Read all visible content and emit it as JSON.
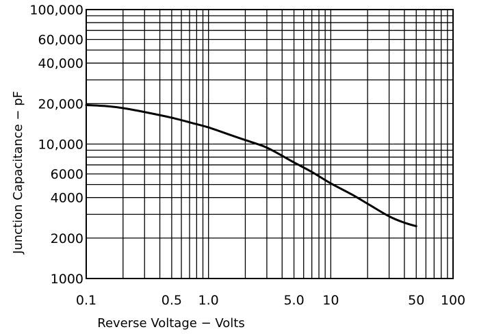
{
  "chart_data": {
    "type": "line",
    "title": "",
    "xlabel": "Reverse Voltage − Volts",
    "ylabel": "Junction Capacitance − pF",
    "x_scale": "log",
    "y_scale": "log",
    "xlim": [
      0.1,
      100
    ],
    "ylim": [
      1000,
      100000
    ],
    "grid": true,
    "x_ticks": [
      {
        "value": 0.1,
        "label": "0.1"
      },
      {
        "value": 0.5,
        "label": "0.5"
      },
      {
        "value": 1,
        "label": "1.0"
      },
      {
        "value": 5,
        "label": "5.0"
      },
      {
        "value": 10,
        "label": "10"
      },
      {
        "value": 50,
        "label": "50"
      },
      {
        "value": 100,
        "label": "100"
      }
    ],
    "y_ticks": [
      {
        "value": 1000,
        "label": "1000"
      },
      {
        "value": 2000,
        "label": "2000"
      },
      {
        "value": 4000,
        "label": "4000"
      },
      {
        "value": 6000,
        "label": "6000"
      },
      {
        "value": 10000,
        "label": "10,000"
      },
      {
        "value": 20000,
        "label": "20,000"
      },
      {
        "value": 40000,
        "label": "40,000"
      },
      {
        "value": 60000,
        "label": "60,000"
      },
      {
        "value": 100000,
        "label": "100,000"
      }
    ],
    "x_gridlines": [
      0.1,
      0.2,
      0.3,
      0.4,
      0.5,
      0.6,
      0.7,
      0.8,
      0.9,
      1,
      2,
      3,
      4,
      5,
      6,
      7,
      8,
      9,
      10,
      20,
      30,
      40,
      50,
      60,
      70,
      80,
      90,
      100
    ],
    "y_gridlines": [
      1000,
      2000,
      3000,
      4000,
      5000,
      6000,
      7000,
      8000,
      9000,
      10000,
      20000,
      30000,
      40000,
      50000,
      60000,
      70000,
      80000,
      90000,
      100000
    ],
    "series": [
      {
        "x": [
          0.1,
          0.15,
          0.2,
          0.3,
          0.5,
          0.7,
          1,
          1.5,
          2,
          3,
          5,
          7,
          10,
          15,
          20,
          30,
          40,
          50
        ],
        "y": [
          19500,
          19100,
          18500,
          17300,
          15700,
          14500,
          13300,
          11700,
          10700,
          9400,
          7300,
          6200,
          5100,
          4200,
          3600,
          2900,
          2600,
          2450
        ]
      }
    ],
    "colors": {
      "background": "#ffffff",
      "grid": "#000000",
      "line": "#000000",
      "text": "#000000"
    }
  }
}
